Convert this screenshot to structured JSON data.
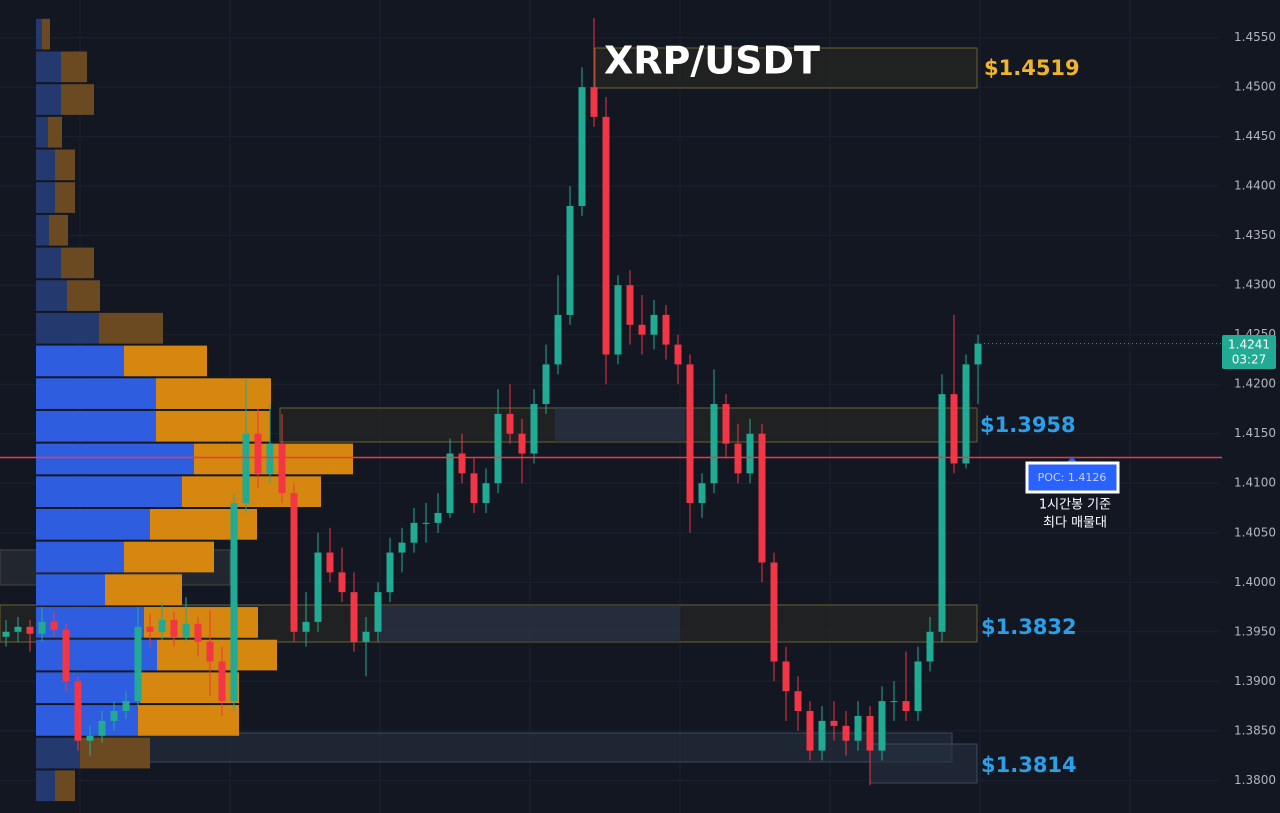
{
  "chart_data": {
    "type": "candlestick",
    "title": "XRP/USDT",
    "ylim": [
      1.3767,
      1.4588
    ],
    "yticks": [
      {
        "value": 1.38,
        "label": "1.3800"
      },
      {
        "value": 1.385,
        "label": "1.3850"
      },
      {
        "value": 1.39,
        "label": "1.3900"
      },
      {
        "value": 1.395,
        "label": "1.3950"
      },
      {
        "value": 1.4,
        "label": "1.4000"
      },
      {
        "value": 1.405,
        "label": "1.4050"
      },
      {
        "value": 1.41,
        "label": "1.4100"
      },
      {
        "value": 1.415,
        "label": "1.4150"
      },
      {
        "value": 1.42,
        "label": "1.4200"
      },
      {
        "value": 1.425,
        "label": "1.4250"
      },
      {
        "value": 1.43,
        "label": "1.4300"
      },
      {
        "value": 1.435,
        "label": "1.4350"
      },
      {
        "value": 1.44,
        "label": "1.4400"
      },
      {
        "value": 1.445,
        "label": "1.4450"
      },
      {
        "value": 1.45,
        "label": "1.4500"
      },
      {
        "value": 1.455,
        "label": "1.4550"
      }
    ],
    "grid": true,
    "up_color": "#22ab94",
    "down_color": "#f23645",
    "candles": [
      [
        1.3945,
        1.3962,
        1.3935,
        1.395
      ],
      [
        1.395,
        1.3965,
        1.394,
        1.3955
      ],
      [
        1.3955,
        1.3962,
        1.393,
        1.3948
      ],
      [
        1.3948,
        1.3975,
        1.394,
        1.396
      ],
      [
        1.396,
        1.397,
        1.3945,
        1.3952
      ],
      [
        1.3952,
        1.3958,
        1.389,
        1.39
      ],
      [
        1.39,
        1.3905,
        1.383,
        1.384
      ],
      [
        1.384,
        1.3855,
        1.3825,
        1.3845
      ],
      [
        1.3845,
        1.387,
        1.3838,
        1.386
      ],
      [
        1.386,
        1.388,
        1.385,
        1.387
      ],
      [
        1.387,
        1.389,
        1.3862,
        1.388
      ],
      [
        1.388,
        1.3975,
        1.3875,
        1.3955
      ],
      [
        1.3955,
        1.3968,
        1.3935,
        1.395
      ],
      [
        1.395,
        1.398,
        1.3942,
        1.3962
      ],
      [
        1.3962,
        1.397,
        1.3935,
        1.3945
      ],
      [
        1.3945,
        1.3985,
        1.394,
        1.3958
      ],
      [
        1.3958,
        1.3965,
        1.3925,
        1.394
      ],
      [
        1.394,
        1.3972,
        1.3885,
        1.392
      ],
      [
        1.392,
        1.3935,
        1.3865,
        1.388
      ],
      [
        1.388,
        1.409,
        1.387,
        1.408
      ],
      [
        1.408,
        1.4205,
        1.407,
        1.415
      ],
      [
        1.415,
        1.4175,
        1.4095,
        1.411
      ],
      [
        1.411,
        1.418,
        1.41,
        1.414
      ],
      [
        1.414,
        1.417,
        1.408,
        1.409
      ],
      [
        1.409,
        1.41,
        1.394,
        1.395
      ],
      [
        1.395,
        1.399,
        1.3935,
        1.396
      ],
      [
        1.396,
        1.405,
        1.395,
        1.403
      ],
      [
        1.403,
        1.4055,
        1.4,
        1.401
      ],
      [
        1.401,
        1.4035,
        1.398,
        1.399
      ],
      [
        1.399,
        1.401,
        1.393,
        1.394
      ],
      [
        1.394,
        1.3965,
        1.3905,
        1.395
      ],
      [
        1.395,
        1.4,
        1.394,
        1.399
      ],
      [
        1.399,
        1.4045,
        1.398,
        1.403
      ],
      [
        1.403,
        1.4055,
        1.401,
        1.404
      ],
      [
        1.404,
        1.4075,
        1.403,
        1.406
      ],
      [
        1.406,
        1.408,
        1.404,
        1.406
      ],
      [
        1.406,
        1.409,
        1.405,
        1.407
      ],
      [
        1.407,
        1.4145,
        1.4065,
        1.413
      ],
      [
        1.413,
        1.415,
        1.41,
        1.411
      ],
      [
        1.411,
        1.4125,
        1.407,
        1.408
      ],
      [
        1.408,
        1.4115,
        1.407,
        1.41
      ],
      [
        1.41,
        1.4195,
        1.409,
        1.417
      ],
      [
        1.417,
        1.42,
        1.414,
        1.415
      ],
      [
        1.415,
        1.4165,
        1.41,
        1.413
      ],
      [
        1.413,
        1.4195,
        1.412,
        1.418
      ],
      [
        1.418,
        1.424,
        1.417,
        1.422
      ],
      [
        1.422,
        1.431,
        1.421,
        1.427
      ],
      [
        1.427,
        1.44,
        1.426,
        1.438
      ],
      [
        1.438,
        1.452,
        1.437,
        1.45
      ],
      [
        1.45,
        1.457,
        1.446,
        1.447
      ],
      [
        1.447,
        1.449,
        1.42,
        1.423
      ],
      [
        1.423,
        1.431,
        1.422,
        1.43
      ],
      [
        1.43,
        1.4315,
        1.424,
        1.426
      ],
      [
        1.426,
        1.429,
        1.423,
        1.425
      ],
      [
        1.425,
        1.4285,
        1.4235,
        1.427
      ],
      [
        1.427,
        1.428,
        1.4225,
        1.424
      ],
      [
        1.424,
        1.425,
        1.42,
        1.422
      ],
      [
        1.422,
        1.423,
        1.405,
        1.408
      ],
      [
        1.408,
        1.411,
        1.4065,
        1.41
      ],
      [
        1.41,
        1.4215,
        1.409,
        1.418
      ],
      [
        1.418,
        1.419,
        1.4125,
        1.414
      ],
      [
        1.414,
        1.416,
        1.41,
        1.411
      ],
      [
        1.411,
        1.4165,
        1.41,
        1.415
      ],
      [
        1.415,
        1.416,
        1.4,
        1.402
      ],
      [
        1.402,
        1.403,
        1.39,
        1.392
      ],
      [
        1.392,
        1.3935,
        1.386,
        1.389
      ],
      [
        1.389,
        1.3905,
        1.385,
        1.387
      ],
      [
        1.387,
        1.388,
        1.382,
        1.383
      ],
      [
        1.383,
        1.3875,
        1.382,
        1.386
      ],
      [
        1.386,
        1.388,
        1.384,
        1.3855
      ],
      [
        1.3855,
        1.387,
        1.3825,
        1.384
      ],
      [
        1.384,
        1.388,
        1.383,
        1.3865
      ],
      [
        1.3865,
        1.3875,
        1.3795,
        1.383
      ],
      [
        1.383,
        1.3895,
        1.382,
        1.388
      ],
      [
        1.388,
        1.39,
        1.386,
        1.388
      ],
      [
        1.388,
        1.393,
        1.386,
        1.387
      ],
      [
        1.387,
        1.3935,
        1.386,
        1.392
      ],
      [
        1.392,
        1.3965,
        1.391,
        1.395
      ],
      [
        1.395,
        1.421,
        1.394,
        1.419
      ],
      [
        1.419,
        1.427,
        1.411,
        1.412
      ],
      [
        1.412,
        1.423,
        1.4115,
        1.422
      ],
      [
        1.422,
        1.425,
        1.418,
        1.4241
      ]
    ],
    "last_price": 1.4241,
    "countdown": "03:27",
    "poc": {
      "value": 1.4126,
      "label": "POC: 1.4126"
    },
    "poc_note": [
      "1시간봉 기준",
      "최다 매물대"
    ],
    "annotations": [
      "$1.4519",
      "$1.3958",
      "$1.3832",
      "$1.3814"
    ],
    "volume_profile": {
      "bins": [
        1.457,
        1.4537,
        1.4504,
        1.4471,
        1.4438,
        1.4405,
        1.4372,
        1.4339,
        1.4306,
        1.4273,
        1.424,
        1.4207,
        1.4174,
        1.4141,
        1.4108,
        1.4075,
        1.4042,
        1.4009,
        1.3976,
        1.3943,
        1.391,
        1.3877,
        1.3844,
        1.3811,
        1.3778
      ],
      "buy": [
        6,
        25,
        25,
        12,
        19,
        19,
        13,
        25,
        31,
        63,
        88,
        120,
        120,
        158,
        146,
        114,
        88,
        69,
        108,
        121,
        104,
        102,
        44,
        19
      ],
      "sell": [
        8,
        26,
        33,
        14,
        20,
        20,
        19,
        33,
        33,
        64,
        83,
        115,
        114,
        159,
        139,
        107,
        90,
        77,
        114,
        120,
        99,
        101,
        70,
        20
      ]
    }
  }
}
